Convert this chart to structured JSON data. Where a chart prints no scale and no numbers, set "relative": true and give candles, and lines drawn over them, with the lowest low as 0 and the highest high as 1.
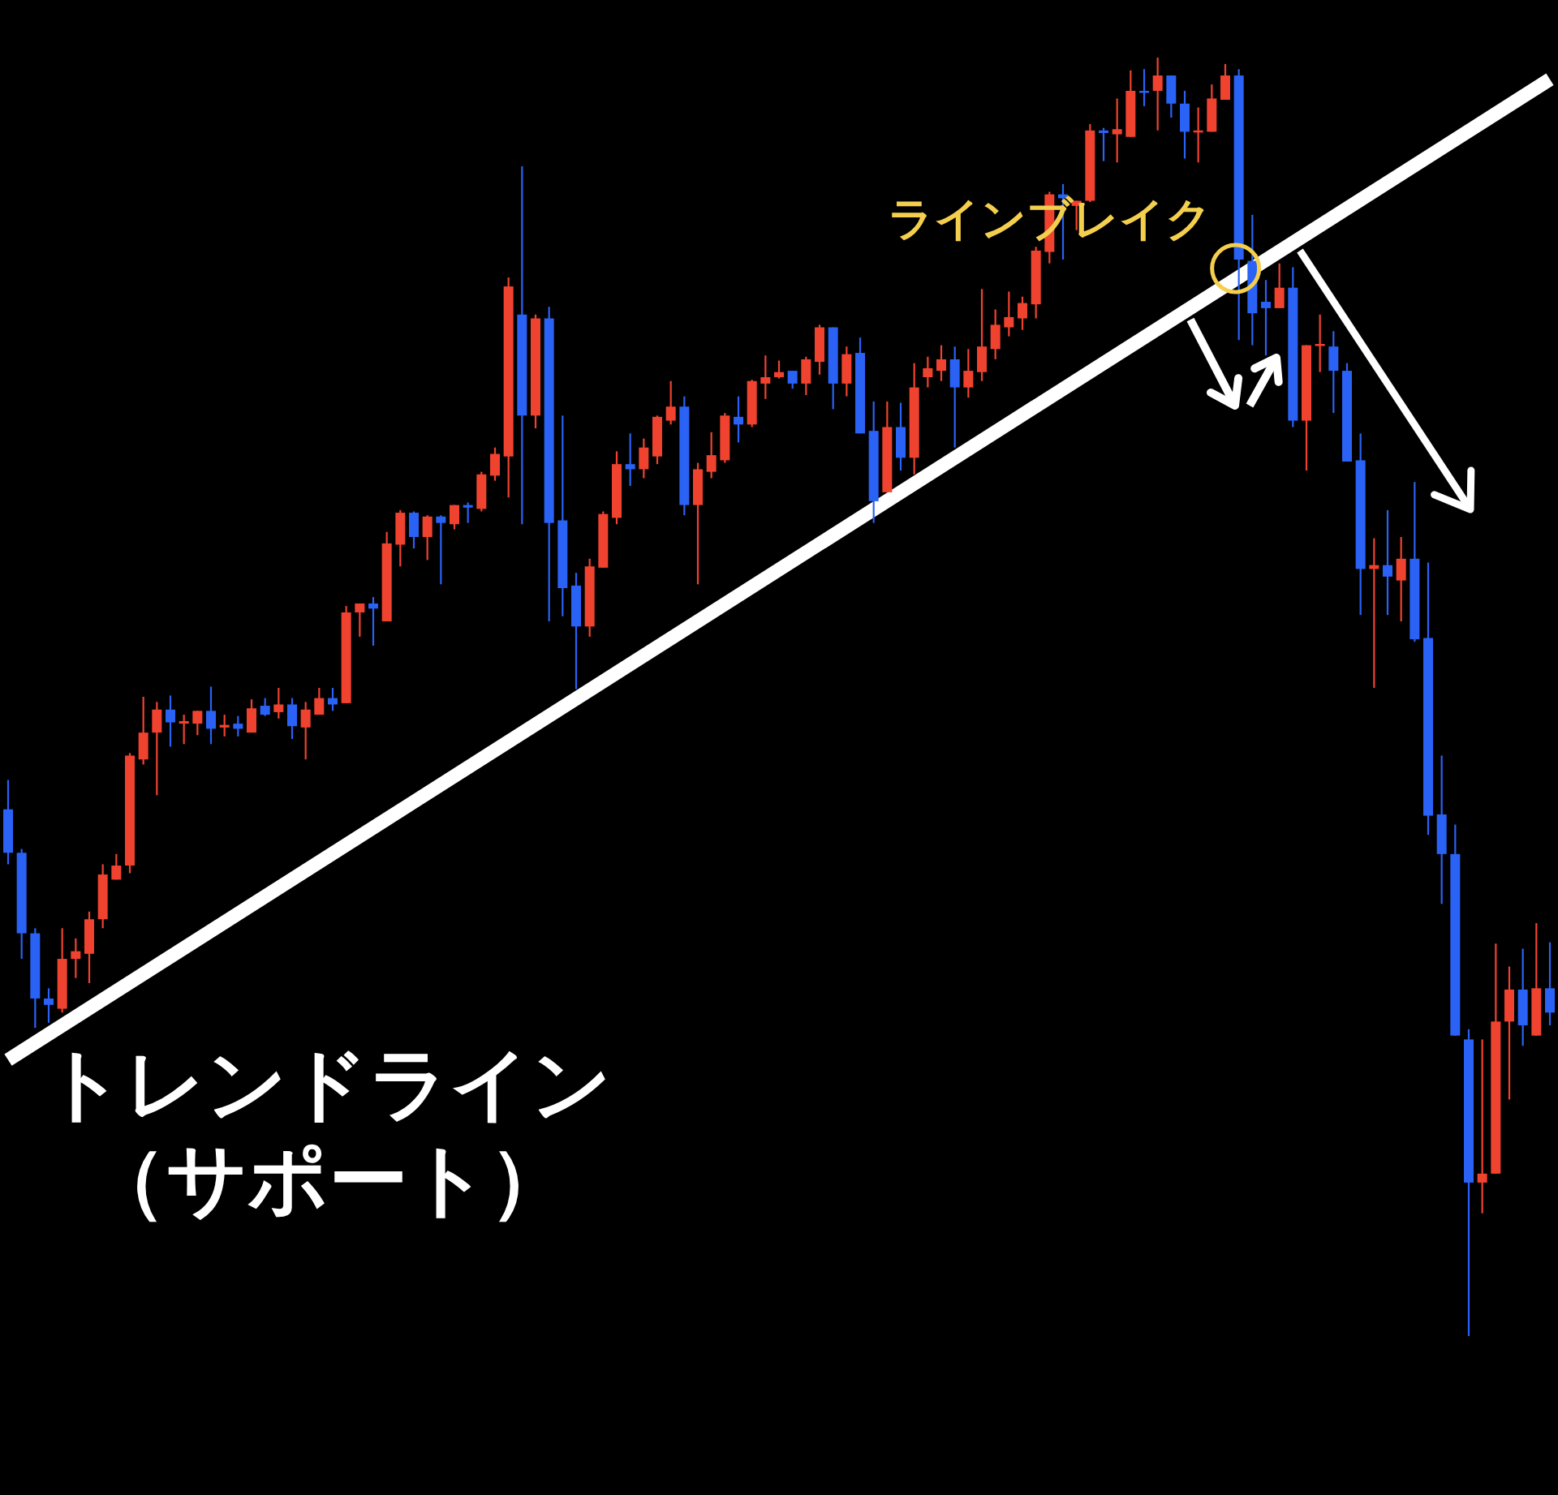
{
  "chart_data": {
    "type": "candlestick",
    "relative": true,
    "categories": [
      null,
      null,
      null,
      null,
      null,
      null,
      null,
      null,
      null,
      null,
      null,
      null,
      null,
      null,
      null,
      null,
      null,
      null,
      null,
      null,
      null,
      null,
      null,
      null,
      null,
      null,
      null,
      null,
      null,
      null,
      null,
      null,
      null,
      null,
      null,
      null,
      null,
      null,
      null,
      null,
      null,
      null,
      null,
      null,
      null,
      null,
      null,
      null,
      null,
      null,
      null,
      null,
      null,
      null,
      null,
      null,
      null,
      null,
      null,
      null,
      null,
      null,
      null,
      null,
      null,
      null,
      null,
      null,
      null,
      null,
      null,
      null,
      null,
      null,
      null,
      null,
      null,
      null,
      null,
      null,
      null,
      null,
      null,
      null,
      null,
      null,
      null,
      null,
      null,
      null,
      null,
      null,
      null,
      null,
      null,
      null,
      null,
      null,
      null,
      null,
      null,
      null,
      null,
      null,
      null,
      null,
      null,
      null,
      null,
      null,
      null,
      null,
      null,
      null,
      null
    ],
    "ohlc": [
      [
        0.412,
        0.435,
        0.369,
        0.378
      ],
      [
        0.378,
        0.381,
        0.295,
        0.315
      ],
      [
        0.315,
        0.319,
        0.241,
        0.264
      ],
      [
        0.264,
        0.272,
        0.245,
        0.259
      ],
      [
        0.256,
        0.319,
        0.253,
        0.295
      ],
      [
        0.295,
        0.311,
        0.28,
        0.301
      ],
      [
        0.299,
        0.332,
        0.276,
        0.326
      ],
      [
        0.326,
        0.369,
        0.319,
        0.361
      ],
      [
        0.357,
        0.377,
        0.357,
        0.368
      ],
      [
        0.368,
        0.456,
        0.362,
        0.454
      ],
      [
        0.451,
        0.5,
        0.447,
        0.472
      ],
      [
        0.472,
        0.496,
        0.423,
        0.49
      ],
      [
        0.49,
        0.501,
        0.461,
        0.48
      ],
      [
        0.479,
        0.486,
        0.463,
        0.481
      ],
      [
        0.479,
        0.489,
        0.47,
        0.489
      ],
      [
        0.489,
        0.508,
        0.463,
        0.475
      ],
      [
        0.476,
        0.486,
        0.469,
        0.478
      ],
      [
        0.479,
        0.485,
        0.469,
        0.475
      ],
      [
        0.472,
        0.498,
        0.472,
        0.491
      ],
      [
        0.493,
        0.499,
        0.485,
        0.486
      ],
      [
        0.488,
        0.507,
        0.483,
        0.494
      ],
      [
        0.494,
        0.499,
        0.467,
        0.477
      ],
      [
        0.476,
        0.496,
        0.451,
        0.49
      ],
      [
        0.486,
        0.507,
        0.486,
        0.499
      ],
      [
        0.499,
        0.507,
        0.489,
        0.494
      ],
      [
        0.495,
        0.571,
        0.495,
        0.566
      ],
      [
        0.566,
        0.573,
        0.547,
        0.573
      ],
      [
        0.573,
        0.578,
        0.54,
        0.569
      ],
      [
        0.559,
        0.629,
        0.559,
        0.62
      ],
      [
        0.619,
        0.646,
        0.602,
        0.644
      ],
      [
        0.644,
        0.645,
        0.616,
        0.625
      ],
      [
        0.625,
        0.642,
        0.607,
        0.641
      ],
      [
        0.641,
        0.642,
        0.588,
        0.636
      ],
      [
        0.635,
        0.65,
        0.631,
        0.65
      ],
      [
        0.65,
        0.652,
        0.636,
        0.648
      ],
      [
        0.647,
        0.676,
        0.645,
        0.674
      ],
      [
        0.673,
        0.695,
        0.669,
        0.69
      ],
      [
        0.688,
        0.828,
        0.656,
        0.821
      ],
      [
        0.799,
        0.915,
        0.635,
        0.72
      ],
      [
        0.72,
        0.799,
        0.71,
        0.796
      ],
      [
        0.796,
        0.805,
        0.559,
        0.636
      ],
      [
        0.638,
        0.72,
        0.563,
        0.585
      ],
      [
        0.587,
        0.597,
        0.506,
        0.555
      ],
      [
        0.555,
        0.608,
        0.547,
        0.602
      ],
      [
        0.601,
        0.645,
        0.601,
        0.643
      ],
      [
        0.64,
        0.692,
        0.635,
        0.682
      ],
      [
        0.682,
        0.706,
        0.665,
        0.678
      ],
      [
        0.678,
        0.702,
        0.671,
        0.695
      ],
      [
        0.688,
        0.72,
        0.682,
        0.719
      ],
      [
        0.716,
        0.747,
        0.713,
        0.727
      ],
      [
        0.727,
        0.735,
        0.642,
        0.65
      ],
      [
        0.65,
        0.683,
        0.588,
        0.678
      ],
      [
        0.676,
        0.707,
        0.671,
        0.689
      ],
      [
        0.685,
        0.722,
        0.683,
        0.72
      ],
      [
        0.719,
        0.735,
        0.699,
        0.713
      ],
      [
        0.713,
        0.748,
        0.711,
        0.747
      ],
      [
        0.745,
        0.767,
        0.733,
        0.75
      ],
      [
        0.75,
        0.763,
        0.749,
        0.754
      ],
      [
        0.755,
        0.755,
        0.741,
        0.745
      ],
      [
        0.745,
        0.766,
        0.736,
        0.764
      ],
      [
        0.762,
        0.791,
        0.752,
        0.789
      ],
      [
        0.789,
        0.789,
        0.725,
        0.745
      ],
      [
        0.745,
        0.774,
        0.735,
        0.768
      ],
      [
        0.769,
        0.781,
        0.706,
        0.706
      ],
      [
        0.708,
        0.731,
        0.636,
        0.653
      ],
      [
        0.66,
        0.731,
        0.66,
        0.711
      ],
      [
        0.711,
        0.73,
        0.677,
        0.687
      ],
      [
        0.687,
        0.761,
        0.674,
        0.742
      ],
      [
        0.75,
        0.766,
        0.742,
        0.757
      ],
      [
        0.755,
        0.775,
        0.747,
        0.764
      ],
      [
        0.764,
        0.774,
        0.695,
        0.742
      ],
      [
        0.742,
        0.772,
        0.734,
        0.755
      ],
      [
        0.754,
        0.819,
        0.747,
        0.774
      ],
      [
        0.772,
        0.803,
        0.764,
        0.791
      ],
      [
        0.789,
        0.817,
        0.782,
        0.797
      ],
      [
        0.796,
        0.813,
        0.787,
        0.808
      ],
      [
        0.807,
        0.852,
        0.796,
        0.849
      ],
      [
        0.848,
        0.895,
        0.839,
        0.893
      ],
      [
        0.893,
        0.901,
        0.842,
        0.89
      ],
      [
        0.884,
        0.888,
        0.865,
        0.888
      ],
      [
        0.888,
        0.948,
        0.887,
        0.943
      ],
      [
        0.943,
        0.945,
        0.919,
        0.941
      ],
      [
        0.94,
        0.968,
        0.918,
        0.944
      ],
      [
        0.938,
        0.99,
        0.938,
        0.974
      ],
      [
        0.974,
        0.991,
        0.962,
        0.973
      ],
      [
        0.974,
        1,
        0.943,
        0.986
      ],
      [
        0.986,
        0.986,
        0.953,
        0.964
      ],
      [
        0.964,
        0.974,
        0.921,
        0.942
      ],
      [
        0.942,
        0.961,
        0.918,
        0.943
      ],
      [
        0.942,
        0.979,
        0.942,
        0.968
      ],
      [
        0.967,
        0.995,
        0.967,
        0.986
      ],
      [
        0.986,
        0.991,
        0.779,
        0.842
      ],
      [
        0.841,
        0.877,
        0.775,
        0.8
      ],
      [
        0.809,
        0.826,
        0.767,
        0.804
      ],
      [
        0.804,
        0.839,
        0.804,
        0.82
      ],
      [
        0.82,
        0.836,
        0.711,
        0.716
      ],
      [
        0.716,
        0.775,
        0.677,
        0.775
      ],
      [
        0.775,
        0.799,
        0.754,
        0.776
      ],
      [
        0.774,
        0.786,
        0.722,
        0.755
      ],
      [
        0.755,
        0.761,
        0.684,
        0.684
      ],
      [
        0.685,
        0.706,
        0.564,
        0.6
      ],
      [
        0.6,
        0.624,
        0.507,
        0.603
      ],
      [
        0.603,
        0.646,
        0.564,
        0.594
      ],
      [
        0.591,
        0.625,
        0.559,
        0.608
      ],
      [
        0.608,
        0.668,
        0.543,
        0.545
      ],
      [
        0.546,
        0.605,
        0.392,
        0.407
      ],
      [
        0.408,
        0.454,
        0.338,
        0.377
      ],
      [
        0.377,
        0.4,
        0.235,
        0.235
      ],
      [
        0.232,
        0.24,
        0,
        0.12
      ],
      [
        0.12,
        0.232,
        0.096,
        0.127
      ],
      [
        0.127,
        0.307,
        0.127,
        0.246
      ],
      [
        0.246,
        0.289,
        0.185,
        0.271
      ],
      [
        0.271,
        0.303,
        0.227,
        0.243
      ],
      [
        0.235,
        0.323,
        0.235,
        0.272
      ],
      [
        0.272,
        0.308,
        0.243,
        0.253
      ]
    ],
    "colors": [
      "#2a62f5",
      "#2a62f5",
      "#2a62f5",
      "#2a62f5",
      "#f0432f",
      "#f0432f",
      "#f0432f",
      "#f0432f",
      "#f0432f",
      "#f0432f",
      "#f0432f",
      "#f0432f",
      "#2a62f5",
      "#f0432f",
      "#f0432f",
      "#2a62f5",
      "#f0432f",
      "#2a62f5",
      "#f0432f",
      "#2a62f5",
      "#f0432f",
      "#2a62f5",
      "#f0432f",
      "#f0432f",
      "#2a62f5",
      "#f0432f",
      "#f0432f",
      "#2a62f5",
      "#f0432f",
      "#f0432f",
      "#2a62f5",
      "#f0432f",
      "#2a62f5",
      "#f0432f",
      "#2a62f5",
      "#f0432f",
      "#f0432f",
      "#f0432f",
      "#2a62f5",
      "#f0432f",
      "#2a62f5",
      "#2a62f5",
      "#2a62f5",
      "#f0432f",
      "#f0432f",
      "#f0432f",
      "#2a62f5",
      "#f0432f",
      "#f0432f",
      "#f0432f",
      "#2a62f5",
      "#f0432f",
      "#f0432f",
      "#f0432f",
      "#2a62f5",
      "#f0432f",
      "#f0432f",
      "#f0432f",
      "#2a62f5",
      "#f0432f",
      "#f0432f",
      "#2a62f5",
      "#f0432f",
      "#2a62f5",
      "#2a62f5",
      "#f0432f",
      "#2a62f5",
      "#f0432f",
      "#f0432f",
      "#f0432f",
      "#2a62f5",
      "#f0432f",
      "#f0432f",
      "#f0432f",
      "#f0432f",
      "#f0432f",
      "#f0432f",
      "#f0432f",
      "#2a62f5",
      "#f0432f",
      "#f0432f",
      "#2a62f5",
      "#f0432f",
      "#f0432f",
      "#2a62f5",
      "#f0432f",
      "#2a62f5",
      "#2a62f5",
      "#f0432f",
      "#f0432f",
      "#f0432f",
      "#2a62f5",
      "#2a62f5",
      "#2a62f5",
      "#f0432f",
      "#2a62f5",
      "#f0432f",
      "#f0432f",
      "#2a62f5",
      "#2a62f5",
      "#2a62f5",
      "#f0432f",
      "#2a62f5",
      "#f0432f",
      "#2a62f5",
      "#2a62f5",
      "#2a62f5",
      "#2a62f5",
      "#2a62f5",
      "#f0432f",
      "#f0432f",
      "#f0432f",
      "#2a62f5",
      "#f0432f",
      "#2a62f5"
    ],
    "series": [
      {
        "type": "line",
        "values": [
          0.216,
          null,
          null,
          null,
          null,
          null,
          null,
          null,
          null,
          null,
          null,
          null,
          null,
          null,
          null,
          null,
          null,
          null,
          null,
          null,
          null,
          null,
          null,
          null,
          null,
          null,
          null,
          null,
          null,
          null,
          null,
          null,
          null,
          null,
          null,
          null,
          null,
          null,
          null,
          null,
          null,
          null,
          null,
          null,
          null,
          null,
          null,
          null,
          null,
          null,
          null,
          null,
          null,
          null,
          null,
          null,
          null,
          null,
          null,
          null,
          null,
          null,
          null,
          null,
          null,
          null,
          null,
          null,
          null,
          null,
          null,
          null,
          null,
          null,
          null,
          null,
          null,
          null,
          null,
          null,
          null,
          null,
          null,
          null,
          null,
          null,
          null,
          null,
          null,
          null,
          null,
          null,
          null,
          null,
          null,
          null,
          null,
          null,
          null,
          null,
          null,
          null,
          null,
          null,
          null,
          null,
          null,
          null,
          null,
          null,
          null,
          null,
          null,
          null,
          0.983
        ],
        "color": "#ffffff"
      }
    ],
    "annotations": [
      "ラインブレイク",
      "トレンドライン",
      "（サポート）"
    ]
  }
}
